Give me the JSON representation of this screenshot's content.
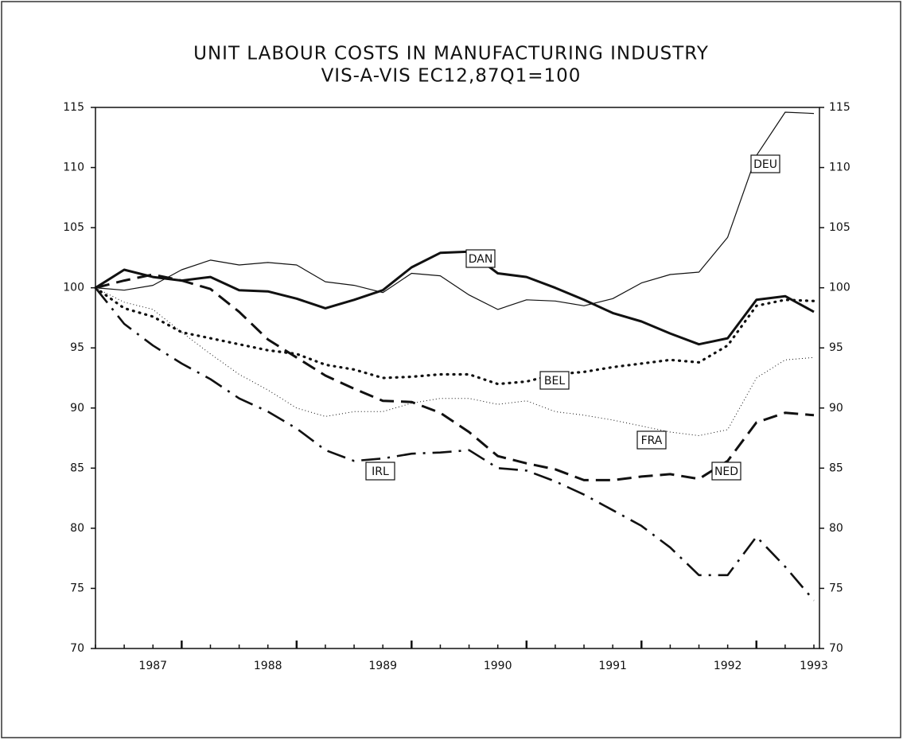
{
  "chart_data": {
    "type": "line",
    "title": "UNIT LABOUR COSTS IN MANUFACTURING INDUSTRY",
    "subtitle": "VIS-A-VIS EC12,87Q1=100",
    "categories": [
      null,
      null,
      "1987",
      null,
      null,
      null,
      "1988",
      null,
      null,
      null,
      "1989",
      null,
      null,
      null,
      "1990",
      null,
      null,
      null,
      "1991",
      null,
      null,
      null,
      "1992",
      null,
      null,
      "1993"
    ],
    "ylim": [
      70,
      115
    ],
    "yticks": [
      70,
      75,
      80,
      85,
      90,
      95,
      100,
      105,
      110,
      115
    ],
    "y2lim": [
      70,
      115
    ],
    "y2ticks": [
      70,
      75,
      80,
      85,
      90,
      95,
      100,
      105,
      110,
      115
    ],
    "grid": false,
    "series": [
      {
        "name": "DEU",
        "color": "#111111",
        "values": [
          100,
          99.8,
          100.2,
          101.5,
          102.3,
          101.9,
          102.1,
          101.9,
          100.5,
          100.2,
          99.6,
          101.2,
          101.0,
          99.4,
          98.2,
          99.0,
          98.9,
          98.5,
          99.1,
          100.4,
          101.1,
          101.3,
          104.2,
          111,
          114.6,
          114.5
        ]
      },
      {
        "name": "DAN",
        "color": "#111111",
        "values": [
          100,
          101.5,
          100.9,
          100.6,
          100.9,
          99.8,
          99.7,
          99.1,
          98.3,
          99.0,
          99.8,
          101.7,
          102.9,
          103.0,
          101.2,
          100.9,
          100.0,
          99.0,
          97.9,
          97.2,
          96.2,
          95.3,
          95.8,
          99.0,
          99.3,
          98.0
        ]
      },
      {
        "name": "BEL",
        "color": "#111111",
        "values": [
          100,
          98.3,
          97.6,
          96.3,
          95.8,
          95.3,
          94.8,
          94.5,
          93.6,
          93.2,
          92.5,
          92.6,
          92.8,
          92.8,
          92.0,
          92.2,
          92.8,
          93.0,
          93.4,
          93.7,
          94.0,
          93.8,
          95.2,
          98.5,
          99.0,
          98.9
        ]
      },
      {
        "name": "FRA",
        "color": "#111111",
        "values": [
          100,
          98.8,
          98.2,
          96.3,
          94.5,
          92.8,
          91.5,
          90.0,
          89.3,
          89.7,
          89.7,
          90.4,
          90.8,
          90.8,
          90.3,
          90.6,
          89.7,
          89.4,
          89.0,
          88.5,
          88.0,
          87.7,
          88.2,
          92.5,
          94.0,
          94.2
        ]
      },
      {
        "name": "NED",
        "color": "#111111",
        "values": [
          100,
          100.6,
          101.1,
          100.6,
          99.9,
          98.0,
          95.7,
          94.2,
          92.7,
          91.6,
          90.6,
          90.5,
          89.6,
          88.0,
          86.0,
          85.4,
          84.9,
          84.0,
          84.0,
          84.3,
          84.5,
          84.1,
          85.6,
          88.8,
          89.6,
          89.4
        ]
      },
      {
        "name": "IRL",
        "color": "#111111",
        "values": [
          100,
          97.0,
          95.2,
          93.7,
          92.4,
          90.8,
          89.7,
          88.3,
          86.5,
          85.6,
          85.8,
          86.2,
          86.3,
          86.5,
          85.0,
          84.8,
          83.9,
          82.8,
          81.5,
          80.2,
          78.4,
          76.1,
          76.1,
          79.3,
          76.8,
          74.0
        ]
      }
    ]
  }
}
